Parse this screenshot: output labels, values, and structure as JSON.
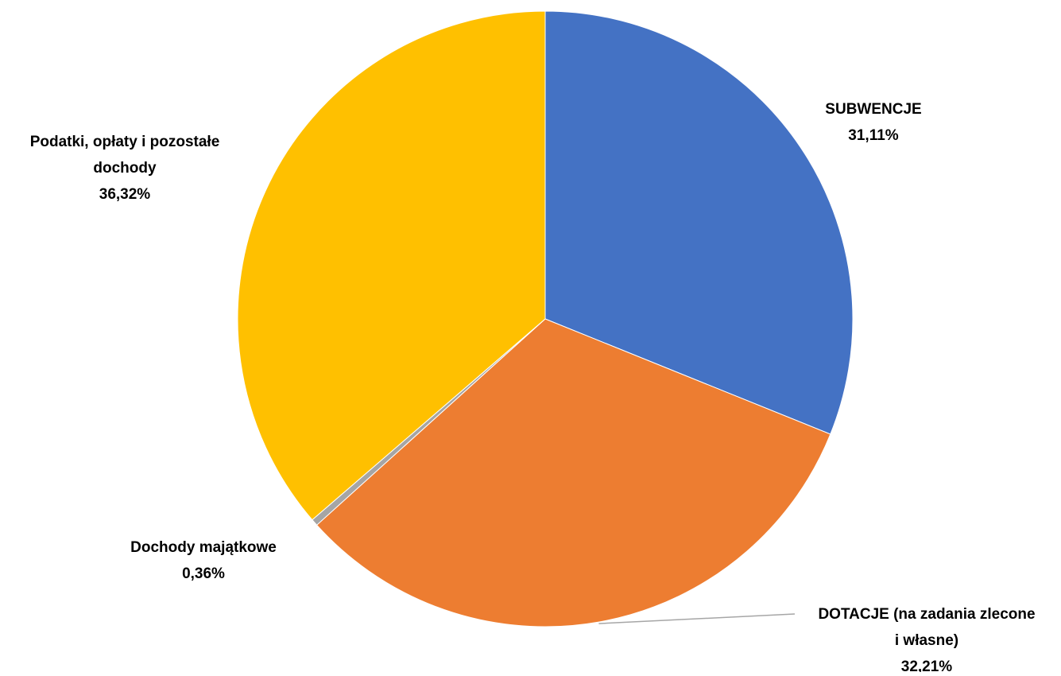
{
  "chart_data": {
    "type": "pie",
    "slices": [
      {
        "name_lines": [
          "SUBWENCJE"
        ],
        "value": 31.11,
        "value_label": "31,11%",
        "color": "#4472C4"
      },
      {
        "name_lines": [
          "DOTACJE (na zadania zlecone",
          "i własne)"
        ],
        "value": 32.21,
        "value_label": "32,21%",
        "color": "#ED7D31"
      },
      {
        "name_lines": [
          "Dochody majątkowe"
        ],
        "value": 0.36,
        "value_label": "0,36%",
        "color": "#A5A5A5"
      },
      {
        "name_lines": [
          "Podatki, opłaty i pozostałe",
          "dochody"
        ],
        "value": 36.32,
        "value_label": "36,32%",
        "color": "#FFC000"
      }
    ],
    "start_angle": "12 o'clock",
    "direction": "clockwise",
    "legend": "none",
    "data_labels": "outside, category name and percentage"
  }
}
